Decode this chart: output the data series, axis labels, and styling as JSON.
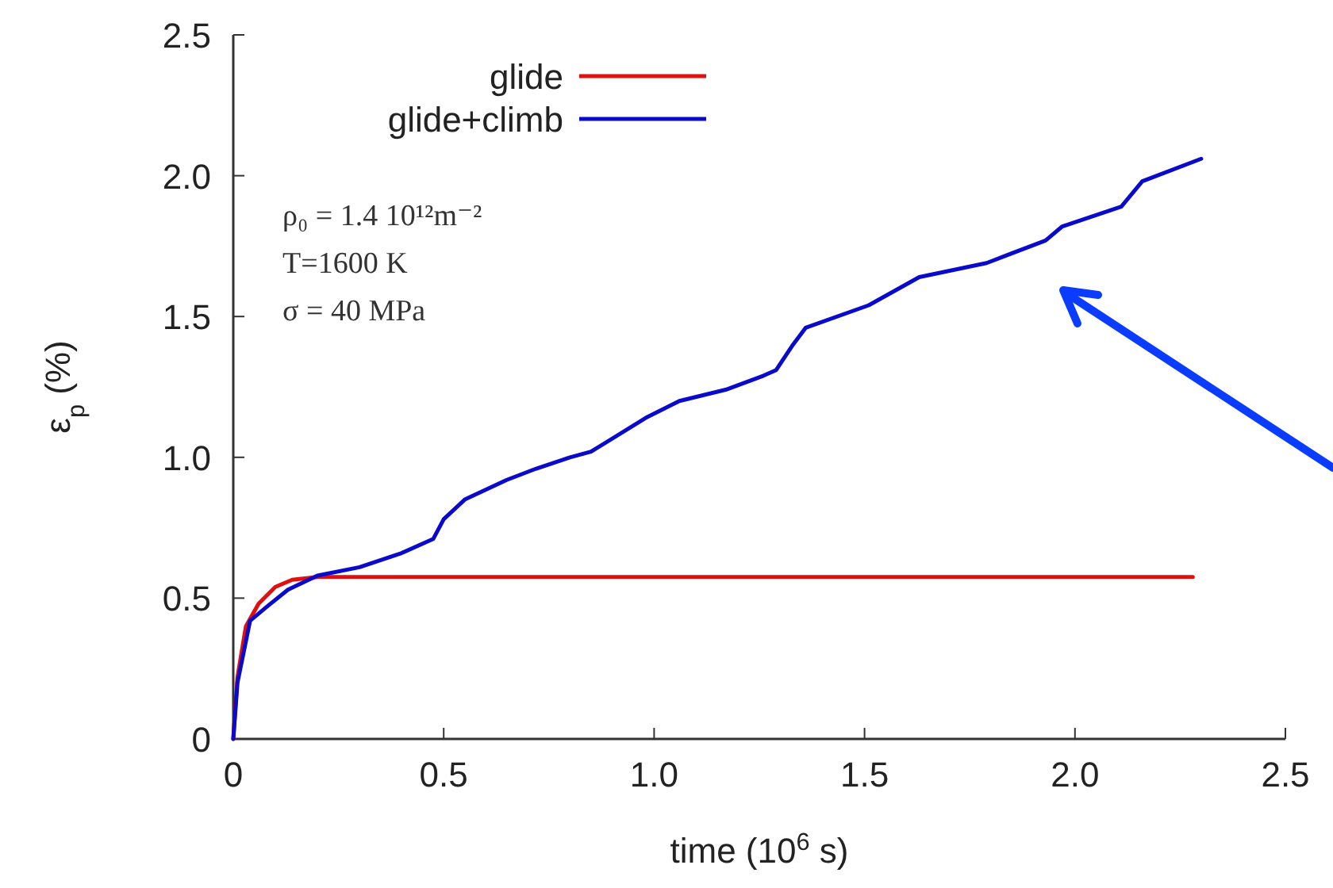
{
  "chart_data": {
    "type": "line",
    "xlabel": "time (10$^{6}$ s)",
    "ylabel": "ε$_{p}$ (%)",
    "annotations": [
      "ρ₀ = 1.4 10¹²m⁻²",
      "T=1600 K",
      "σ = 40 MPa"
    ],
    "xlim": [
      0,
      2.5
    ],
    "ylim": [
      0,
      2.5
    ],
    "xticks": [
      0,
      {
        "value": 0.5,
        "label": "0.5"
      },
      {
        "value": 1,
        "label": "1.0"
      },
      {
        "value": 1.5,
        "label": "1.5"
      },
      {
        "value": 2,
        "label": "2.0"
      },
      {
        "value": 2.5,
        "label": "2.5"
      }
    ],
    "yticks": [
      0,
      {
        "value": 0.5,
        "label": "0.5"
      },
      {
        "value": 1,
        "label": "1.0"
      },
      {
        "value": 1.5,
        "label": "1.5"
      },
      {
        "value": 2,
        "label": "2.0"
      },
      {
        "value": 2.5,
        "label": "2.5"
      }
    ],
    "grid": false,
    "legend": "top",
    "line_style": "solid",
    "marker": "none",
    "series": [
      {
        "name": "glide",
        "color": "#e01010",
        "x": [
          0,
          0.01,
          0.03,
          0.06,
          0.1,
          0.14,
          0.2,
          0.5,
          1,
          1.5,
          2,
          2.28
        ],
        "values": [
          0,
          0.22,
          0.4,
          0.48,
          0.54,
          0.565,
          0.575,
          0.575,
          0.575,
          0.575,
          0.575,
          0.575
        ]
      },
      {
        "name": "glide+climb",
        "color": "#0a0acc",
        "x": [
          0,
          0.01,
          0.04,
          0.08,
          0.13,
          0.2,
          0.3,
          0.4,
          0.475,
          0.5,
          0.55,
          0.65,
          0.72,
          0.8,
          0.85,
          0.98,
          1.06,
          1.17,
          1.26,
          1.29,
          1.33,
          1.36,
          1.51,
          1.63,
          1.79,
          1.93,
          1.97,
          2.11,
          2.16,
          2.3
        ],
        "values": [
          0,
          0.2,
          0.42,
          0.47,
          0.53,
          0.58,
          0.61,
          0.66,
          0.71,
          0.78,
          0.85,
          0.92,
          0.96,
          1.0,
          1.02,
          1.14,
          1.2,
          1.24,
          1.29,
          1.31,
          1.4,
          1.46,
          1.54,
          1.64,
          1.69,
          1.77,
          1.82,
          1.89,
          1.98,
          2.06
        ]
      }
    ]
  }
}
